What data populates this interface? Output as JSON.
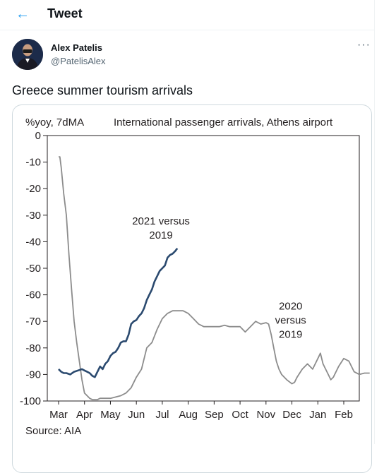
{
  "header": {
    "title": "Tweet",
    "back_icon": "arrow-left-icon"
  },
  "author": {
    "name": "Alex Patelis",
    "handle": "@PatelisAlex"
  },
  "tweet": {
    "text": "Greece summer tourism arrivals",
    "more_label": "···"
  },
  "colors": {
    "accent": "#1d9bf0",
    "series_2021": "#2b4a6f",
    "series_2020": "#8c8c8c"
  },
  "chart_data": {
    "type": "line",
    "title": "International passenger arrivals, Athens airport",
    "ylabel": "%yoy, 7dMA",
    "source": "Source: AIA",
    "categories": [
      "Mar",
      "Apr",
      "May",
      "Jun",
      "Jul",
      "Aug",
      "Sep",
      "Oct",
      "Nov",
      "Dec",
      "Jan",
      "Feb"
    ],
    "ylim": [
      -100,
      0
    ],
    "yticks": [
      0,
      -10,
      -20,
      -30,
      -40,
      -50,
      -60,
      -70,
      -80,
      -90,
      -100
    ],
    "grid": false,
    "series": [
      {
        "name": "2021 versus 2019",
        "label": [
          "2021 versus",
          "2019"
        ],
        "x": [
          0.0,
          0.1,
          0.2,
          0.3,
          0.45,
          0.6,
          0.75,
          0.9,
          1.0,
          1.1,
          1.2,
          1.3,
          1.4,
          1.5,
          1.6,
          1.7,
          1.8,
          1.9,
          2.0,
          2.1,
          2.2,
          2.3,
          2.4,
          2.5,
          2.6,
          2.7,
          2.8,
          2.9,
          3.0,
          3.1,
          3.2,
          3.3,
          3.4,
          3.5,
          3.6,
          3.7,
          3.8,
          3.9,
          4.0,
          4.1,
          4.2,
          4.3,
          4.4,
          4.5,
          4.58
        ],
        "values": [
          -88,
          -89,
          -89.5,
          -89.5,
          -90,
          -89,
          -88.5,
          -88,
          -88.5,
          -89,
          -89.5,
          -90.5,
          -91,
          -89,
          -87,
          -88,
          -86,
          -85,
          -83,
          -82,
          -81.5,
          -80,
          -78,
          -77.5,
          -77.5,
          -75,
          -71,
          -70,
          -69.5,
          -68,
          -67,
          -65,
          -62,
          -60,
          -58,
          -55,
          -53,
          -51,
          -50,
          -49,
          -46,
          -45,
          -44.5,
          -43.5,
          -42.5
        ]
      },
      {
        "name": "2020 versus 2019",
        "label": [
          "2020",
          "versus",
          "2019"
        ],
        "x": [
          0.0,
          0.05,
          0.1,
          0.2,
          0.3,
          0.4,
          0.5,
          0.6,
          0.7,
          0.8,
          0.9,
          1.0,
          1.1,
          1.2,
          1.3,
          1.4,
          1.5,
          1.6,
          1.7,
          1.8,
          1.9,
          2.0,
          2.2,
          2.4,
          2.6,
          2.8,
          3.0,
          3.2,
          3.4,
          3.6,
          3.8,
          4.0,
          4.2,
          4.4,
          4.6,
          4.8,
          5.0,
          5.2,
          5.4,
          5.6,
          5.8,
          6.0,
          6.2,
          6.4,
          6.6,
          6.8,
          7.0,
          7.2,
          7.4,
          7.6,
          7.8,
          8.0,
          8.1,
          8.2,
          8.3,
          8.4,
          8.5,
          8.6,
          8.8,
          9.0,
          9.1,
          9.2,
          9.4,
          9.6,
          9.8,
          10.0,
          10.1,
          10.2,
          10.3,
          10.4,
          10.5,
          10.6,
          10.8,
          11.0,
          11.2,
          11.4,
          11.6,
          11.8,
          12.0
        ],
        "values": [
          -8,
          -8,
          -12,
          -22,
          -30,
          -45,
          -58,
          -70,
          -78,
          -85,
          -92,
          -97,
          -98,
          -99,
          -99.5,
          -99.5,
          -99.5,
          -99,
          -99,
          -99,
          -99,
          -99,
          -98.5,
          -98,
          -97,
          -95,
          -91,
          -88,
          -80,
          -78,
          -73,
          -69,
          -67,
          -66,
          -66,
          -66,
          -67,
          -69,
          -71,
          -72,
          -72,
          -72,
          -72,
          -71.5,
          -72,
          -72,
          -72,
          -74,
          -72,
          -70,
          -71,
          -70.5,
          -71,
          -75,
          -80,
          -85,
          -88,
          -90,
          -92,
          -93.5,
          -93,
          -91,
          -88,
          -86,
          -88,
          -84,
          -82,
          -86,
          -88,
          -90,
          -92,
          -91,
          -87,
          -84,
          -85,
          -89,
          -90,
          -89.5,
          -89.5
        ]
      }
    ]
  }
}
